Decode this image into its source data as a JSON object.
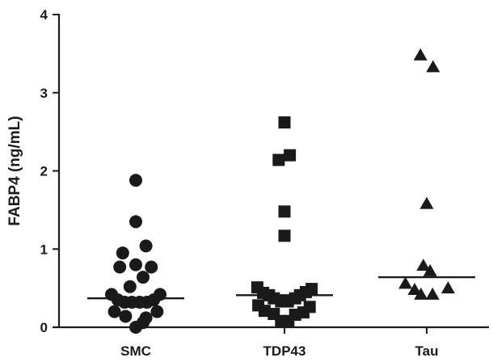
{
  "chart_data": {
    "type": "scatter",
    "subtype": "dot-plot",
    "title": "",
    "xlabel": "",
    "ylabel": "FABP4 (ng/mL)",
    "ylim": [
      0,
      4
    ],
    "yticks": [
      "0",
      "1",
      "2",
      "3",
      "4"
    ],
    "categories": [
      "SMC",
      "TDP43",
      "Tau"
    ],
    "grid": false,
    "colors": {
      "marker": "#1a1a1a",
      "axis": "#1a1a1a"
    },
    "series": [
      {
        "category": "SMC",
        "marker": "circle",
        "median": 0.37,
        "points": [
          {
            "dx": 0.0,
            "y": 1.88
          },
          {
            "dx": 0.0,
            "y": 1.35
          },
          {
            "dx": 0.21,
            "y": 1.04
          },
          {
            "dx": -0.27,
            "y": 0.95
          },
          {
            "dx": 0.0,
            "y": 0.8
          },
          {
            "dx": -0.33,
            "y": 0.77
          },
          {
            "dx": 0.32,
            "y": 0.77
          },
          {
            "dx": 0.15,
            "y": 0.64
          },
          {
            "dx": -0.12,
            "y": 0.52
          },
          {
            "dx": -0.5,
            "y": 0.42
          },
          {
            "dx": 0.5,
            "y": 0.42
          },
          {
            "dx": -0.37,
            "y": 0.35
          },
          {
            "dx": -0.23,
            "y": 0.32
          },
          {
            "dx": -0.08,
            "y": 0.32
          },
          {
            "dx": 0.08,
            "y": 0.32
          },
          {
            "dx": 0.23,
            "y": 0.32
          },
          {
            "dx": 0.37,
            "y": 0.35
          },
          {
            "dx": -0.44,
            "y": 0.2
          },
          {
            "dx": 0.44,
            "y": 0.2
          },
          {
            "dx": -0.21,
            "y": 0.14
          },
          {
            "dx": 0.21,
            "y": 0.12
          },
          {
            "dx": 0.0,
            "y": 0.0
          },
          {
            "dx": 0.15,
            "y": 0.06
          }
        ]
      },
      {
        "category": "TDP43",
        "marker": "square",
        "median": 0.41,
        "points": [
          {
            "dx": 0.0,
            "y": 2.62
          },
          {
            "dx": 0.11,
            "y": 2.2
          },
          {
            "dx": -0.12,
            "y": 2.14
          },
          {
            "dx": 0.0,
            "y": 1.48
          },
          {
            "dx": 0.0,
            "y": 1.17
          },
          {
            "dx": -0.56,
            "y": 0.51
          },
          {
            "dx": 0.56,
            "y": 0.49
          },
          {
            "dx": -0.44,
            "y": 0.44
          },
          {
            "dx": 0.44,
            "y": 0.45
          },
          {
            "dx": -0.32,
            "y": 0.41
          },
          {
            "dx": 0.32,
            "y": 0.41
          },
          {
            "dx": -0.22,
            "y": 0.37
          },
          {
            "dx": 0.22,
            "y": 0.37
          },
          {
            "dx": -0.07,
            "y": 0.33
          },
          {
            "dx": 0.07,
            "y": 0.33
          },
          {
            "dx": -0.54,
            "y": 0.28
          },
          {
            "dx": 0.52,
            "y": 0.26
          },
          {
            "dx": -0.41,
            "y": 0.21
          },
          {
            "dx": 0.39,
            "y": 0.19
          },
          {
            "dx": -0.22,
            "y": 0.17
          },
          {
            "dx": 0.22,
            "y": 0.16
          },
          {
            "dx": -0.07,
            "y": 0.08
          },
          {
            "dx": 0.08,
            "y": 0.08
          }
        ]
      },
      {
        "category": "Tau",
        "marker": "triangle",
        "median": 0.64,
        "points": [
          {
            "dx": -0.13,
            "y": 3.48
          },
          {
            "dx": 0.13,
            "y": 3.33
          },
          {
            "dx": 0.0,
            "y": 1.58
          },
          {
            "dx": -0.07,
            "y": 0.79
          },
          {
            "dx": 0.07,
            "y": 0.72
          },
          {
            "dx": -0.44,
            "y": 0.56
          },
          {
            "dx": 0.44,
            "y": 0.5
          },
          {
            "dx": -0.25,
            "y": 0.48
          },
          {
            "dx": -0.12,
            "y": 0.42
          },
          {
            "dx": 0.12,
            "y": 0.42
          }
        ]
      }
    ]
  }
}
